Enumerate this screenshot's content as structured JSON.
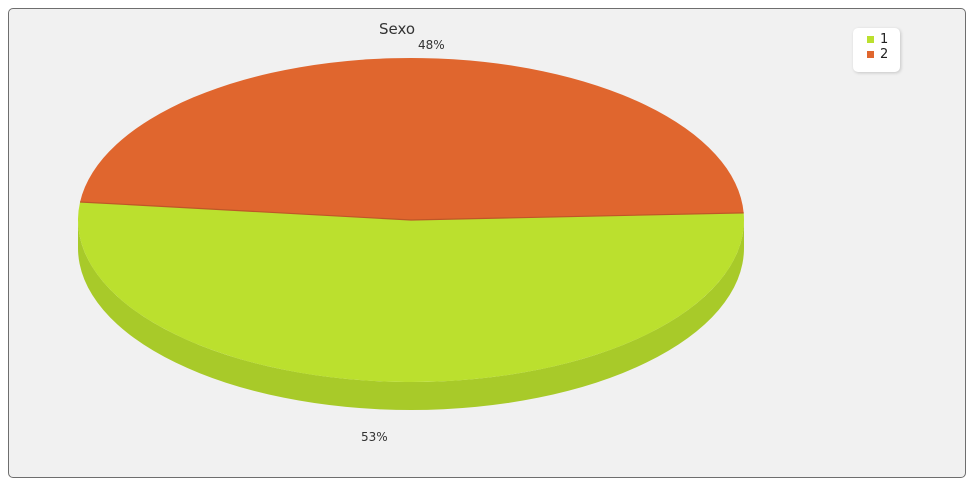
{
  "chart_data": {
    "type": "pie",
    "title": "Sexo",
    "slices": [
      {
        "label": "1",
        "value": 53,
        "value_label": "53%",
        "color": "#bbe02e"
      },
      {
        "label": "2",
        "value": 48,
        "value_label": "48%",
        "color": "#e0662e"
      }
    ],
    "legend": {
      "position": "top-right"
    },
    "style": "3d"
  }
}
